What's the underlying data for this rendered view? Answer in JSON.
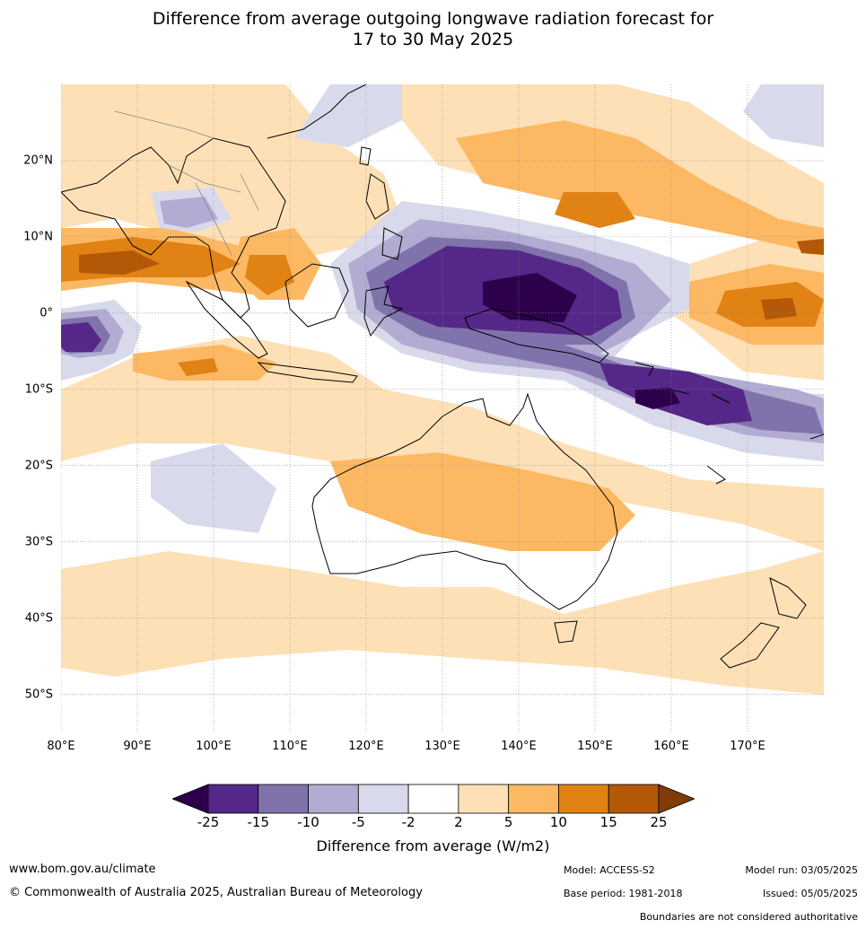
{
  "title_line1": "Difference from average outgoing longwave radiation forecast for",
  "title_line2": "17 to 30 May 2025",
  "lat_labels": [
    "20°N",
    "10°N",
    "0°",
    "10°S",
    "20°S",
    "30°S",
    "40°S",
    "50°S"
  ],
  "lat_values": [
    20,
    10,
    0,
    -10,
    -20,
    -30,
    -40,
    -50
  ],
  "lon_labels": [
    "80°E",
    "90°E",
    "100°E",
    "110°E",
    "120°E",
    "130°E",
    "140°E",
    "150°E",
    "160°E",
    "170°E"
  ],
  "lon_values": [
    80,
    90,
    100,
    110,
    120,
    130,
    140,
    150,
    160,
    170
  ],
  "map_extent": {
    "lon": [
      80,
      180
    ],
    "lat": [
      -55,
      30
    ]
  },
  "colorbar": {
    "title": "Difference from average (W/m2)",
    "tick_labels": [
      "-25",
      "-15",
      "-10",
      "-5",
      "-2",
      "2",
      "5",
      "10",
      "15",
      "25"
    ],
    "colors": [
      "#2d004b",
      "#542788",
      "#8073ac",
      "#b2abd2",
      "#d8daeb",
      "#ffffff",
      "#fee0b6",
      "#fdb863",
      "#e08214",
      "#b35806",
      "#7f3b08"
    ]
  },
  "footer": {
    "url": "www.bom.gov.au/climate",
    "copyright": "© Commonwealth of Australia 2025, Australian Bureau of Meteorology",
    "model": "Model: ACCESS-S2",
    "base_period": "Base period: 1981-2018",
    "model_run": "Model run: 03/05/2025",
    "issued": "Issued: 05/05/2025",
    "disclaimer": "Boundaries are not considered authoritative"
  }
}
